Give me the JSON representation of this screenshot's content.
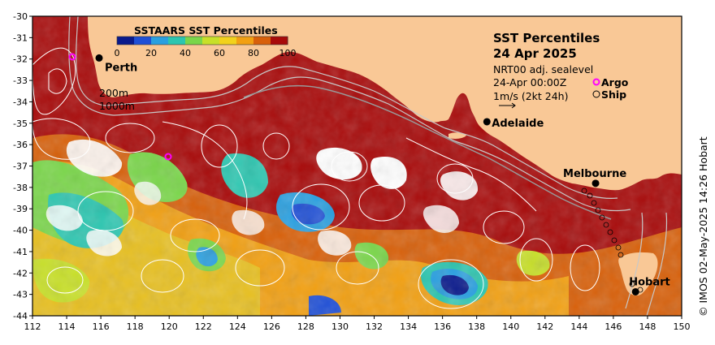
{
  "map": {
    "title_line1": "SST Percentiles",
    "title_line2": "24 Apr 2025",
    "info_line1": "NRT00 adj. sealevel",
    "info_line2": "24-Apr 00:00Z",
    "info_line3": "1m/s (2kt 24h)",
    "argo_label": "Argo",
    "ship_label": "Ship",
    "depth_label_1": "200m",
    "depth_label_2": "1000m",
    "credit": "© IMOS 02-May-2025 14:26 Hobart"
  },
  "colorbar": {
    "title": "SSTAARS SST Percentiles",
    "ticks": [
      "0",
      "20",
      "40",
      "60",
      "80",
      "100"
    ],
    "colors": [
      "#0a1a8c",
      "#1f4fd6",
      "#2aa0e0",
      "#2cc6b0",
      "#7ad64a",
      "#c8e028",
      "#f2d21c",
      "#f2a012",
      "#d8600a",
      "#a80a0a"
    ]
  },
  "axes": {
    "lon_ticks": [
      "112",
      "114",
      "116",
      "118",
      "120",
      "122",
      "124",
      "126",
      "128",
      "130",
      "132",
      "134",
      "136",
      "138",
      "140",
      "142",
      "144",
      "146",
      "148",
      "150"
    ],
    "lat_ticks": [
      "-30",
      "-31",
      "-32",
      "-33",
      "-34",
      "-35",
      "-36",
      "-37",
      "-38",
      "-39",
      "-40",
      "-41",
      "-42",
      "-43",
      "-44"
    ]
  },
  "places": [
    {
      "name": "Perth",
      "lon": 115.9,
      "lat": -31.95
    },
    {
      "name": "Adelaide",
      "lon": 138.6,
      "lat": -34.93
    },
    {
      "name": "Melbourne",
      "lon": 144.96,
      "lat": -37.81
    },
    {
      "name": "Hobart",
      "lon": 147.3,
      "lat": -42.88
    }
  ],
  "colors": {
    "land": "#f9c896",
    "ocean_hot": "#a80a0a",
    "argo": "#ff00ff"
  }
}
